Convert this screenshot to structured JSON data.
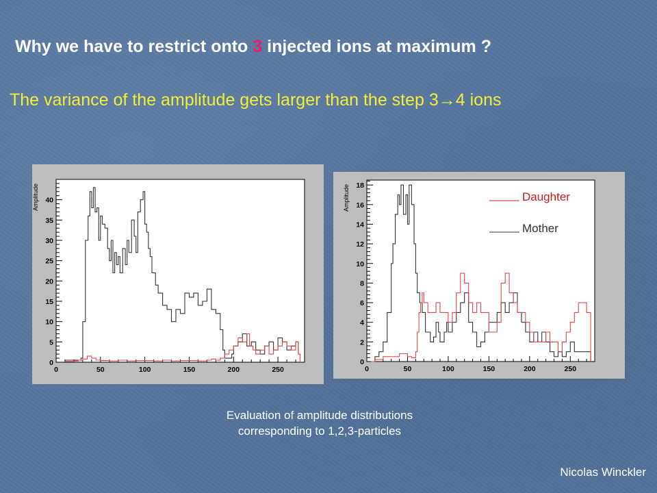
{
  "heading": {
    "before": "Why we have to restrict onto ",
    "accent": "3",
    "after": " injected ions at maximum ?"
  },
  "subheading": "The variance of the amplitude gets larger than the step 3→4 ions",
  "caption": {
    "line1": "Evaluation of amplitude distributions",
    "line2": "corresponding to 1,2,3-particles"
  },
  "author": "Nicolas Winckler",
  "colors": {
    "mother": "#333333",
    "daughter": "#e0454c",
    "heading_accent": "#e8206c",
    "subheading": "#f2ee3a",
    "legend_daughter": "#c81e1e"
  },
  "chart_data": [
    {
      "type": "line",
      "ylabel": "Amplitude",
      "xlim": [
        0,
        280
      ],
      "ylim": [
        0,
        45
      ],
      "x_ticks": [
        0,
        50,
        100,
        150,
        200,
        250
      ],
      "y_ticks": [
        0,
        5,
        10,
        15,
        20,
        25,
        30,
        35,
        40
      ],
      "series": [
        {
          "key": "mother",
          "x": [
            10,
            22,
            28,
            30,
            33,
            36,
            38,
            40,
            42,
            44,
            46,
            48,
            50,
            52,
            55,
            58,
            60,
            62,
            64,
            66,
            68,
            70,
            72,
            75,
            78,
            80,
            82,
            85,
            88,
            90,
            92,
            95,
            98,
            100,
            102,
            104,
            106,
            108,
            110,
            112,
            115,
            120,
            125,
            130,
            135,
            140,
            145,
            150,
            155,
            160,
            165,
            170,
            175,
            180,
            185,
            188,
            190,
            192,
            195,
            198,
            200,
            205,
            210,
            215,
            220,
            225,
            230,
            235,
            240,
            245,
            250,
            255,
            260,
            265,
            270,
            273,
            275
          ],
          "y": [
            0.5,
            0.5,
            1,
            10,
            30,
            36,
            42,
            38,
            43,
            37,
            38,
            30,
            36,
            34,
            33,
            28,
            25,
            30,
            22,
            27,
            24,
            26,
            22,
            28,
            24,
            30,
            27,
            35,
            31,
            27,
            37,
            40,
            42,
            34,
            32,
            28,
            26,
            22,
            22,
            19,
            17,
            14,
            13,
            10,
            13,
            12,
            17,
            16,
            17,
            14,
            15,
            18,
            13,
            12,
            8,
            3,
            1,
            1,
            1,
            2,
            4,
            5,
            7,
            4,
            5,
            3,
            2,
            4,
            5,
            3,
            6,
            5,
            3,
            4,
            5,
            2,
            0
          ]
        },
        {
          "key": "daughter",
          "x": [
            10,
            20,
            25,
            30,
            35,
            40,
            45,
            50,
            60,
            70,
            80,
            90,
            100,
            110,
            120,
            130,
            140,
            150,
            160,
            170,
            175,
            180,
            185,
            190,
            195,
            200,
            205,
            210,
            215,
            218,
            222,
            225,
            230,
            235,
            240,
            245,
            250,
            255,
            260,
            265,
            270,
            273,
            275
          ],
          "y": [
            0.2,
            0.3,
            0.5,
            0.8,
            1.5,
            1,
            0.5,
            0.4,
            0.3,
            0.5,
            0.3,
            0.4,
            0.4,
            0.3,
            0.5,
            0.3,
            0.4,
            0.4,
            0.3,
            0.5,
            0.8,
            0.5,
            1,
            2,
            3,
            4,
            6,
            5,
            7,
            4,
            3,
            2,
            3,
            4,
            2,
            3,
            4,
            5,
            4,
            3,
            5,
            2,
            0
          ]
        }
      ]
    },
    {
      "type": "line",
      "ylabel": "Amplitude",
      "xlim": [
        0,
        280
      ],
      "ylim": [
        0,
        18.5
      ],
      "x_ticks": [
        0,
        50,
        100,
        150,
        200,
        250
      ],
      "y_ticks": [
        0,
        2,
        4,
        6,
        8,
        10,
        12,
        14,
        16,
        18
      ],
      "legend": [
        {
          "key": "daughter",
          "label": "Daughter"
        },
        {
          "key": "mother",
          "label": "Mother"
        }
      ],
      "series": [
        {
          "key": "mother",
          "x": [
            5,
            10,
            15,
            20,
            25,
            30,
            32,
            35,
            38,
            40,
            42,
            45,
            48,
            50,
            52,
            55,
            58,
            60,
            62,
            65,
            68,
            70,
            72,
            75,
            78,
            80,
            82,
            85,
            88,
            90,
            92,
            95,
            98,
            100,
            105,
            110,
            115,
            120,
            125,
            130,
            135,
            140,
            145,
            150,
            155,
            160,
            165,
            170,
            175,
            180,
            185,
            190,
            195,
            200,
            205,
            210,
            215,
            220,
            225,
            230,
            235,
            240,
            245,
            250,
            255,
            260,
            265,
            270,
            275
          ],
          "y": [
            0,
            0.5,
            1,
            2,
            5,
            10,
            12,
            15,
            17,
            16,
            18,
            15,
            17,
            14,
            18,
            16,
            12,
            9,
            7,
            6,
            5,
            5,
            3,
            3,
            2,
            2,
            2.5,
            4,
            3,
            2,
            2,
            3,
            4,
            3,
            4,
            5,
            6,
            7,
            4,
            3,
            1.5,
            2,
            3,
            4,
            4,
            5,
            6,
            5,
            6,
            7,
            5,
            4,
            3,
            2,
            3,
            2,
            3,
            2,
            1,
            0.5,
            1,
            0.5,
            1,
            2,
            1,
            1,
            1,
            1,
            0
          ]
        },
        {
          "key": "daughter",
          "x": [
            5,
            10,
            20,
            30,
            40,
            50,
            55,
            60,
            62,
            64,
            66,
            68,
            70,
            75,
            80,
            85,
            90,
            95,
            100,
            105,
            110,
            115,
            120,
            125,
            130,
            135,
            140,
            145,
            150,
            155,
            160,
            165,
            170,
            175,
            180,
            185,
            190,
            195,
            200,
            205,
            210,
            215,
            220,
            225,
            230,
            235,
            240,
            245,
            250,
            255,
            260,
            265,
            270,
            275
          ],
          "y": [
            0,
            0.2,
            0.5,
            0.5,
            0.8,
            0.5,
            0.4,
            1,
            3,
            5,
            6,
            7,
            6,
            5,
            5,
            6,
            5,
            5,
            4,
            5,
            7,
            9,
            8,
            6,
            5,
            6,
            5,
            5,
            3,
            3,
            4,
            8,
            9,
            7,
            6,
            5,
            5,
            4,
            3,
            2,
            2,
            2,
            3,
            2,
            2,
            1,
            2,
            3,
            4,
            5,
            6,
            6,
            5,
            0
          ]
        }
      ]
    }
  ]
}
